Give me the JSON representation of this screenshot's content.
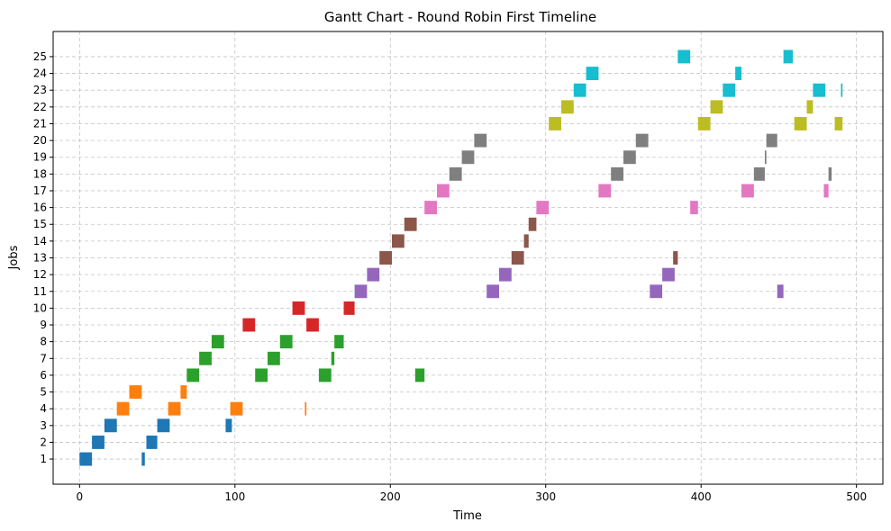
{
  "chart_data": {
    "type": "gantt",
    "title": "Gantt Chart - Round Robin First Timeline",
    "xlabel": "Time",
    "ylabel": "Jobs",
    "xlim": [
      -17,
      517
    ],
    "ylim": [
      -0.5,
      26.5
    ],
    "x_ticks": [
      0,
      100,
      200,
      300,
      400,
      500
    ],
    "y_ticks": [
      1,
      2,
      3,
      4,
      5,
      6,
      7,
      8,
      9,
      10,
      11,
      12,
      13,
      14,
      15,
      16,
      17,
      18,
      19,
      20,
      21,
      22,
      23,
      24,
      25
    ],
    "grid": true,
    "bar_height": 0.8,
    "jobs": [
      {
        "job": 1,
        "color": "#1f77b4",
        "segments": [
          [
            0,
            8
          ],
          [
            40,
            42
          ]
        ]
      },
      {
        "job": 2,
        "color": "#1f77b4",
        "segments": [
          [
            8,
            16
          ],
          [
            43,
            50
          ]
        ]
      },
      {
        "job": 3,
        "color": "#1f77b4",
        "segments": [
          [
            16,
            24
          ],
          [
            50,
            58
          ],
          [
            94,
            98
          ]
        ]
      },
      {
        "job": 4,
        "color": "#ff7f0e",
        "segments": [
          [
            24,
            32
          ],
          [
            57,
            65
          ],
          [
            97,
            105
          ],
          [
            145,
            146
          ]
        ]
      },
      {
        "job": 5,
        "color": "#ff7f0e",
        "segments": [
          [
            32,
            40
          ],
          [
            65,
            69
          ]
        ]
      },
      {
        "job": 6,
        "color": "#2ca02c",
        "segments": [
          [
            69,
            77
          ],
          [
            113,
            121
          ],
          [
            154,
            162
          ],
          [
            216,
            222
          ]
        ]
      },
      {
        "job": 7,
        "color": "#2ca02c",
        "segments": [
          [
            77,
            85
          ],
          [
            121,
            129
          ],
          [
            162,
            164
          ]
        ]
      },
      {
        "job": 8,
        "color": "#2ca02c",
        "segments": [
          [
            85,
            93
          ],
          [
            129,
            137
          ],
          [
            164,
            170
          ]
        ]
      },
      {
        "job": 9,
        "color": "#d62728",
        "segments": [
          [
            105,
            113
          ],
          [
            146,
            154
          ]
        ]
      },
      {
        "job": 10,
        "color": "#d62728",
        "segments": [
          [
            137,
            145
          ],
          [
            170,
            177
          ]
        ]
      },
      {
        "job": 11,
        "color": "#9467bd",
        "segments": [
          [
            177,
            185
          ],
          [
            262,
            270
          ],
          [
            367,
            375
          ],
          [
            449,
            453
          ]
        ]
      },
      {
        "job": 12,
        "color": "#9467bd",
        "segments": [
          [
            185,
            193
          ],
          [
            270,
            278
          ],
          [
            375,
            383
          ]
        ]
      },
      {
        "job": 13,
        "color": "#8c564b",
        "segments": [
          [
            193,
            201
          ],
          [
            278,
            286
          ],
          [
            382,
            385
          ]
        ]
      },
      {
        "job": 14,
        "color": "#8c564b",
        "segments": [
          [
            201,
            209
          ],
          [
            286,
            289
          ]
        ]
      },
      {
        "job": 15,
        "color": "#8c564b",
        "segments": [
          [
            209,
            217
          ],
          [
            289,
            294
          ]
        ]
      },
      {
        "job": 16,
        "color": "#e377c2",
        "segments": [
          [
            222,
            230
          ],
          [
            294,
            302
          ],
          [
            393,
            398
          ]
        ]
      },
      {
        "job": 17,
        "color": "#e377c2",
        "segments": [
          [
            230,
            238
          ],
          [
            334,
            342
          ],
          [
            426,
            434
          ],
          [
            479,
            482
          ]
        ]
      },
      {
        "job": 18,
        "color": "#7f7f7f",
        "segments": [
          [
            238,
            246
          ],
          [
            342,
            350
          ],
          [
            434,
            441
          ],
          [
            482,
            484
          ]
        ]
      },
      {
        "job": 19,
        "color": "#7f7f7f",
        "segments": [
          [
            246,
            254
          ],
          [
            350,
            358
          ],
          [
            441,
            442
          ]
        ]
      },
      {
        "job": 20,
        "color": "#7f7f7f",
        "segments": [
          [
            254,
            262
          ],
          [
            358,
            366
          ],
          [
            442,
            449
          ]
        ]
      },
      {
        "job": 21,
        "color": "#bcbd22",
        "segments": [
          [
            302,
            310
          ],
          [
            398,
            406
          ],
          [
            460,
            468
          ],
          [
            486,
            491
          ]
        ]
      },
      {
        "job": 22,
        "color": "#bcbd22",
        "segments": [
          [
            310,
            318
          ],
          [
            406,
            414
          ],
          [
            468,
            472
          ]
        ]
      },
      {
        "job": 23,
        "color": "#17becf",
        "segments": [
          [
            318,
            326
          ],
          [
            414,
            422
          ],
          [
            472,
            480
          ],
          [
            490,
            491
          ]
        ]
      },
      {
        "job": 24,
        "color": "#17becf",
        "segments": [
          [
            326,
            334
          ],
          [
            422,
            426
          ]
        ]
      },
      {
        "job": 25,
        "color": "#17becf",
        "segments": [
          [
            385,
            393
          ],
          [
            453,
            459
          ]
        ]
      }
    ]
  }
}
